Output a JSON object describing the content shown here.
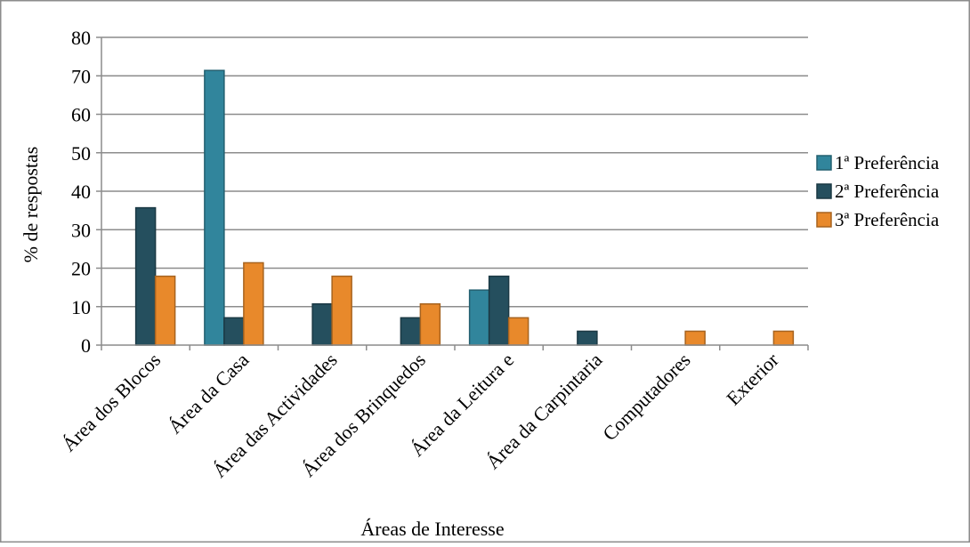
{
  "chart_data": {
    "type": "bar",
    "title": "",
    "xlabel": "Áreas de Interesse",
    "ylabel": "% de respostas",
    "ylim": [
      0,
      80
    ],
    "yticks": [
      0,
      10,
      20,
      30,
      40,
      50,
      60,
      70,
      80
    ],
    "grid": true,
    "legend_position": "right",
    "categories": [
      "Área dos Blocos",
      "Área da Casa",
      "Área das Actividades",
      "Área dos Brinquedos",
      "Área da Leitura e",
      "Área da Carpintaria",
      "Computadores",
      "Exterior"
    ],
    "series": [
      {
        "name": "1ª Preferência",
        "color": "#31859c",
        "values": [
          0,
          71.4,
          0,
          0,
          14.3,
          0,
          0,
          0
        ]
      },
      {
        "name": "2ª Preferência",
        "color": "#254f5e",
        "values": [
          35.7,
          7.1,
          10.7,
          7.1,
          17.9,
          3.6,
          0,
          0
        ]
      },
      {
        "name": "3ª Preferência",
        "color": "#e8892b",
        "values": [
          17.9,
          21.4,
          17.9,
          10.7,
          7.1,
          0,
          3.6,
          3.6
        ]
      }
    ]
  }
}
